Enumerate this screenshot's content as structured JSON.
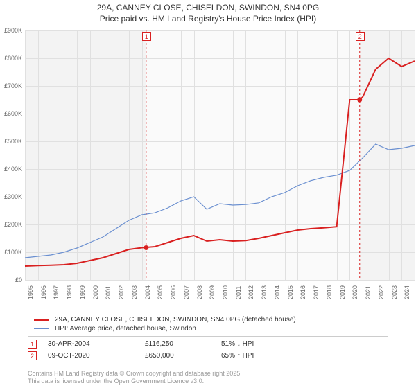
{
  "title_line1": "29A, CANNEY CLOSE, CHISELDON, SWINDON, SN4 0PG",
  "title_line2": "Price paid vs. HM Land Registry's House Price Index (HPI)",
  "chart": {
    "type": "line",
    "background_color": "#fafafa",
    "shade_color": "#f3f3f3",
    "grid_color": "#e0e0e0",
    "ylim": [
      0,
      900000
    ],
    "ytick_step": 100000,
    "y_labels": [
      "£0",
      "£100K",
      "£200K",
      "£300K",
      "£400K",
      "£500K",
      "£600K",
      "£700K",
      "£800K",
      "£900K"
    ],
    "x_years": [
      1995,
      1996,
      1997,
      1998,
      1999,
      2000,
      2001,
      2002,
      2003,
      2004,
      2005,
      2006,
      2007,
      2008,
      2009,
      2010,
      2011,
      2012,
      2013,
      2014,
      2015,
      2016,
      2017,
      2018,
      2019,
      2020,
      2021,
      2022,
      2023,
      2024,
      2025
    ],
    "shade_range_year": [
      2004.33,
      2020.77
    ],
    "series_red": {
      "label": "29A, CANNEY CLOSE, CHISELDON, SWINDON, SN4 0PG (detached house)",
      "color": "#d92020",
      "width": 2,
      "values": [
        50000,
        52000,
        53000,
        55000,
        60000,
        70000,
        80000,
        95000,
        110000,
        116250,
        120000,
        135000,
        150000,
        160000,
        140000,
        145000,
        140000,
        142000,
        150000,
        160000,
        170000,
        180000,
        185000,
        188000,
        192000,
        650000,
        660000,
        760000,
        800000,
        770000,
        790000
      ],
      "markers": [
        {
          "year": 2004.33,
          "value": 116250,
          "label": "1"
        },
        {
          "year": 2020.77,
          "value": 650000,
          "label": "2"
        }
      ]
    },
    "series_blue": {
      "label": "HPI: Average price, detached house, Swindon",
      "color": "#6a8fd0",
      "width": 1.2,
      "values": [
        80000,
        85000,
        90000,
        100000,
        115000,
        135000,
        155000,
        185000,
        215000,
        235000,
        242000,
        260000,
        285000,
        300000,
        255000,
        275000,
        270000,
        272000,
        278000,
        300000,
        315000,
        340000,
        358000,
        370000,
        378000,
        395000,
        440000,
        490000,
        470000,
        475000,
        485000
      ]
    }
  },
  "annotations": {
    "top_markers": [
      {
        "label": "1",
        "year": 2004.33,
        "color": "#d92020"
      },
      {
        "label": "2",
        "year": 2020.77,
        "color": "#d92020"
      }
    ]
  },
  "legend": {
    "rows": [
      {
        "color": "#d92020",
        "width": 2,
        "text": "29A, CANNEY CLOSE, CHISELDON, SWINDON, SN4 0PG (detached house)"
      },
      {
        "color": "#6a8fd0",
        "width": 1.2,
        "text": "HPI: Average price, detached house, Swindon"
      }
    ]
  },
  "transactions": [
    {
      "num": "1",
      "color": "#d92020",
      "date": "30-APR-2004",
      "price": "£116,250",
      "delta": "51% ↓ HPI"
    },
    {
      "num": "2",
      "color": "#d92020",
      "date": "09-OCT-2020",
      "price": "£650,000",
      "delta": "65% ↑ HPI"
    }
  ],
  "footer_line1": "Contains HM Land Registry data © Crown copyright and database right 2025.",
  "footer_line2": "This data is licensed under the Open Government Licence v3.0."
}
